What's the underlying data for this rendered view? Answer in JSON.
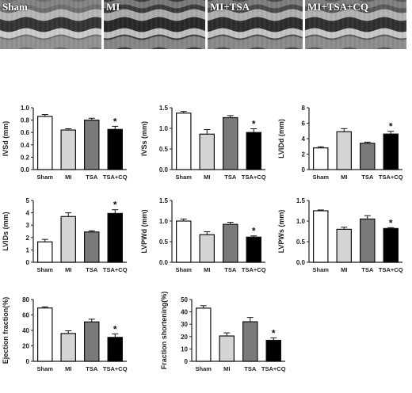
{
  "echo_panels": [
    {
      "label": "Sham",
      "tone": "#6e6e6e"
    },
    {
      "label": "MI",
      "tone": "#3a3a3a"
    },
    {
      "label": "MI+TSA",
      "tone": "#4a4a4a"
    },
    {
      "label": "MI+TSA+CQ",
      "tone": "#5a5a5a"
    }
  ],
  "bar_colors": [
    "#ffffff",
    "#d4d4d4",
    "#7a7a7a",
    "#000000"
  ],
  "chart_data": [
    {
      "type": "bar",
      "ylabel": "IVSd (mm)",
      "ylim": [
        0,
        1.0
      ],
      "yticks": [
        "0.0",
        "0.2",
        "0.4",
        "0.6",
        "0.8",
        "1.0"
      ],
      "categories": [
        "Sham",
        "MI",
        "TSA",
        "TSA+CQ"
      ],
      "values": [
        0.86,
        0.64,
        0.8,
        0.65
      ],
      "errors": [
        0.03,
        0.02,
        0.03,
        0.05
      ],
      "significance": [
        "",
        "",
        "",
        "*"
      ]
    },
    {
      "type": "bar",
      "ylabel": "IVSs (mm)",
      "ylim": [
        0,
        1.5
      ],
      "yticks": [
        "0.0",
        "0.5",
        "1.0",
        "1.5"
      ],
      "categories": [
        "Sham",
        "MI",
        "TSA",
        "TSA+CQ"
      ],
      "values": [
        1.37,
        0.86,
        1.26,
        0.9
      ],
      "errors": [
        0.04,
        0.11,
        0.05,
        0.09
      ],
      "significance": [
        "",
        "",
        "",
        "*"
      ]
    },
    {
      "type": "bar",
      "ylabel": "LVIDd (mm)",
      "ylim": [
        0,
        8
      ],
      "yticks": [
        "0",
        "2",
        "4",
        "6",
        "8"
      ],
      "categories": [
        "Sham",
        "MI",
        "TSA",
        "TSA+CQ"
      ],
      "values": [
        2.8,
        4.9,
        3.4,
        4.6
      ],
      "errors": [
        0.15,
        0.4,
        0.15,
        0.35
      ],
      "significance": [
        "",
        "",
        "",
        "*"
      ]
    },
    {
      "type": "bar",
      "ylabel": "LVIDs (mm)",
      "ylim": [
        0,
        5
      ],
      "yticks": [
        "0",
        "1",
        "2",
        "3",
        "4",
        "5"
      ],
      "categories": [
        "Sham",
        "MI",
        "TSA",
        "TSA+CQ"
      ],
      "values": [
        1.65,
        3.7,
        2.45,
        3.95
      ],
      "errors": [
        0.2,
        0.3,
        0.1,
        0.3
      ],
      "significance": [
        "",
        "",
        "",
        "*"
      ]
    },
    {
      "type": "bar",
      "ylabel": "LVPWd (mm)",
      "ylim": [
        0,
        1.5
      ],
      "yticks": [
        "0.0",
        "0.5",
        "1.0",
        "1.5"
      ],
      "categories": [
        "Sham",
        "MI",
        "TSA",
        "TSA+CQ"
      ],
      "values": [
        1.0,
        0.67,
        0.92,
        0.61
      ],
      "errors": [
        0.05,
        0.07,
        0.05,
        0.03
      ],
      "significance": [
        "",
        "",
        "",
        "*"
      ]
    },
    {
      "type": "bar",
      "ylabel": "LVPWs (mm)",
      "ylim": [
        0,
        1.5
      ],
      "yticks": [
        "0.0",
        "0.5",
        "1.0",
        "1.5"
      ],
      "categories": [
        "Sham",
        "MI",
        "TSA",
        "TSA+CQ"
      ],
      "values": [
        1.25,
        0.8,
        1.05,
        0.82
      ],
      "errors": [
        0.02,
        0.05,
        0.08,
        0.02
      ],
      "significance": [
        "",
        "",
        "",
        "*"
      ]
    },
    {
      "type": "bar",
      "ylabel": "Ejection fraction(%)",
      "ylim": [
        0,
        80
      ],
      "yticks": [
        "0",
        "20",
        "40",
        "60",
        "80"
      ],
      "categories": [
        "Sham",
        "MI",
        "TSA",
        "TSA+CQ"
      ],
      "values": [
        69,
        36,
        51,
        31
      ],
      "errors": [
        1.5,
        3.5,
        3.5,
        4.5
      ],
      "significance": [
        "",
        "",
        "",
        "*"
      ]
    },
    {
      "type": "bar",
      "ylabel": "Fraction shortening(%)",
      "ylim": [
        0,
        50
      ],
      "yticks": [
        "0",
        "10",
        "20",
        "30",
        "40",
        "50"
      ],
      "categories": [
        "Sham",
        "MI",
        "TSA",
        "TSA+CQ"
      ],
      "values": [
        43,
        20.5,
        32,
        17
      ],
      "errors": [
        2,
        2.5,
        3.5,
        2
      ],
      "significance": [
        "",
        "",
        "",
        "*"
      ]
    }
  ]
}
